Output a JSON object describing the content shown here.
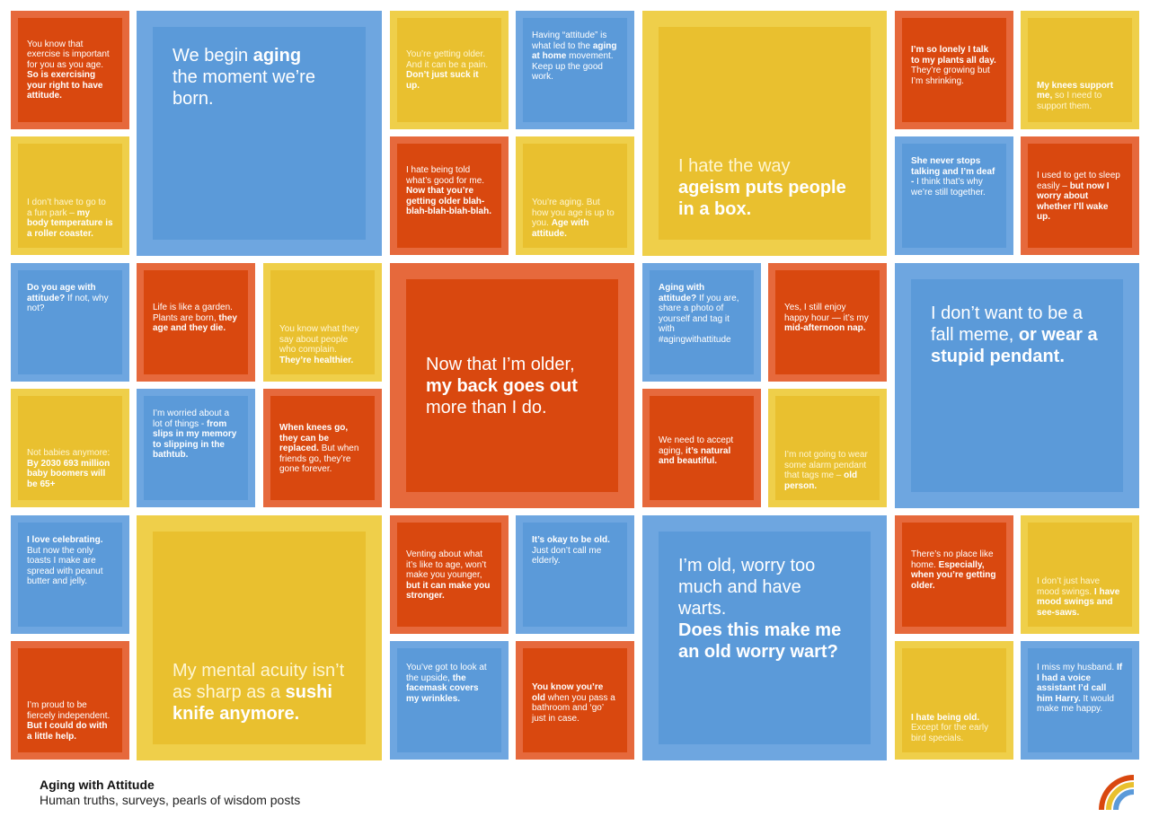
{
  "footer": {
    "title": "Aging with Attitude",
    "subtitle": "Human truths, surveys, pearls of wisdom posts"
  },
  "logo": {
    "icon": "rainbow-icon",
    "colors": [
      "#d9480f",
      "#e9c02f",
      "#5b9ad9"
    ]
  },
  "colors": {
    "orange": "#d9480f",
    "yellow": "#e9c02f",
    "blue": "#5b9ad9"
  },
  "tiles": {
    "t1": {
      "a": "You know that exercise is important for you as you age.",
      "b": "So is exercising your right to have attitude."
    },
    "t2": {
      "a": "We begin",
      "b": "aging",
      "c": "the moment we’re born."
    },
    "t3": {
      "a": "You’re getting older. And it can be a pain.",
      "b": "Don’t just suck it up."
    },
    "t4": {
      "a": "Having “attitude” is what led to the",
      "b": "aging at home",
      "c": "movement. Keep up the good work."
    },
    "t5": {
      "a": "I hate the way",
      "b": "ageism puts people in a box."
    },
    "t6": {
      "a": "I’m so lonely I talk to my plants all day.",
      "b": "They’re growing but I’m shrinking."
    },
    "t7": {
      "a": "My knees support me,",
      "b": "so I need to support them."
    },
    "t8": {
      "a": "I don’t have to go to a fun park –",
      "b": "my body temperature is a roller coaster."
    },
    "t9": {
      "a": "I hate being told what’s good for me.",
      "b": "Now that you’re getting older blah-blah-blah-blah-blah."
    },
    "t10": {
      "a": "You’re aging. But how you age is up to you.",
      "b": "Age with attitude."
    },
    "t11": {
      "a": "She never stops talking and I’m deaf -",
      "b": "I think that’s why we’re still together."
    },
    "t12": {
      "a": "I used to get to sleep easily –",
      "b": "but now I worry about whether I’ll wake up."
    },
    "t13": {
      "a": "Do you age with attitude?",
      "b": "If not, why not?"
    },
    "t14": {
      "a": "Life is like a garden. Plants are born,",
      "b": "they age and they die."
    },
    "t15": {
      "a": "You know what they say about people who complain.",
      "b": "They’re healthier."
    },
    "t16": {
      "a": "Now that I’m older,",
      "b": "my back goes out",
      "c": "more than I do."
    },
    "t17": {
      "a": "Aging with attitude?",
      "b": "If you are, share a photo of yourself and tag it with #agingwithattitude"
    },
    "t18": {
      "a": "Yes, I still enjoy happy hour — it’s my",
      "b": "mid-afternoon nap."
    },
    "t19": {
      "a": "I don’t want to be a fall meme,",
      "b": "or wear a stupid pendant."
    },
    "t20": {
      "a": "Not babies anymore:",
      "b": "By 2030 693 million baby boomers will be 65+"
    },
    "t21": {
      "a": "I’m worried about a lot of things -",
      "b": "from slips in my memory to slipping in the bathtub."
    },
    "t22": {
      "a": "When knees go, they can be replaced.",
      "b": "But when friends go, they’re gone forever."
    },
    "t23": {
      "a": "We need to accept aging,",
      "b": "it’s natural and beautiful."
    },
    "t24": {
      "a": "I’m not going to wear some alarm pendant that tags me –",
      "b": "old person."
    },
    "t25": {
      "a": "I love celebrating.",
      "b": "But now the only toasts I make are spread with peanut butter and jelly."
    },
    "t26": {
      "a": "My mental acuity isn’t as sharp as a",
      "b": "sushi knife anymore."
    },
    "t27": {
      "a": "Venting about what it’s like to age, won’t make you younger,",
      "b": "but it can make you stronger."
    },
    "t28": {
      "a": "It’s okay to be old.",
      "b": "Just don’t call me elderly."
    },
    "t29": {
      "a": "I’m old, worry too much and have warts.",
      "b": "Does this make me an old worry wart?"
    },
    "t30": {
      "a": "There’s no place like home.",
      "b": "Especially, when you’re getting older."
    },
    "t31": {
      "a": "I don’t just have mood swings.",
      "b": "I have mood swings and see-saws."
    },
    "t32": {
      "a": "I’m proud to be fiercely independent.",
      "b": "But I could do with a little help."
    },
    "t33": {
      "a": "You’ve got to look at the upside,",
      "b": "the facemask covers my wrinkles."
    },
    "t34": {
      "a": "You know you’re old",
      "b": "when you pass a bathroom and ‘go’ just in case."
    },
    "t35": {
      "a": "I hate being old.",
      "b": "Except for the early bird specials."
    },
    "t36": {
      "a": "I miss my husband.",
      "b": "If I had a voice assistant I’d call him Harry.",
      "c": "It would make me happy."
    }
  }
}
